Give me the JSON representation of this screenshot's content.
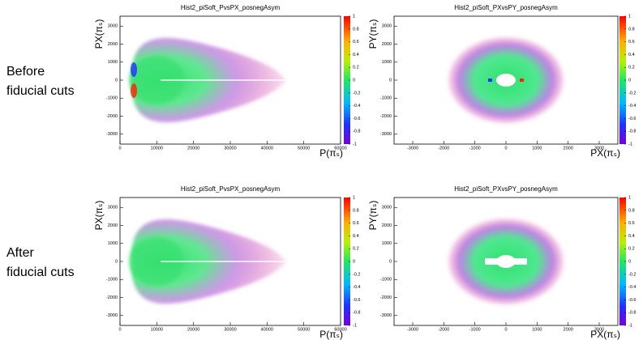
{
  "rows": [
    {
      "label_lines": [
        "Before",
        "fiducial cuts"
      ]
    },
    {
      "label_lines": [
        "After",
        "fiducial cuts"
      ]
    }
  ],
  "chart_data": [
    {
      "type": "heatmap",
      "title": "Hist2_piSoft_PvsPX_posnegAsym",
      "xlabel": "P(πₛ)",
      "ylabel": "PX(πₛ)",
      "xlim": [
        0,
        60000
      ],
      "xticks": [
        0,
        10000,
        20000,
        30000,
        40000,
        50000,
        60000
      ],
      "ylim": [
        -3550,
        3550
      ],
      "yticks": [
        -3000,
        -2000,
        -1000,
        0,
        1000,
        2000,
        3000
      ],
      "zlim": [
        -1,
        1
      ],
      "zticks": [
        -1,
        -0.8,
        -0.6,
        -0.4,
        -0.2,
        0,
        0.2,
        0.4,
        0.6,
        0.8,
        1
      ]
    },
    {
      "type": "heatmap",
      "title": "Hist2_piSoft_PXvsPY_posnegAsym",
      "xlabel": "PX(πₛ)",
      "ylabel": "PY(πₛ)",
      "xlim": [
        -3600,
        3600
      ],
      "xticks": [
        -3000,
        -2000,
        -1000,
        0,
        1000,
        2000,
        3000
      ],
      "ylim": [
        -3550,
        3550
      ],
      "yticks": [
        -3000,
        -2000,
        -1000,
        0,
        1000,
        2000,
        3000
      ],
      "zlim": [
        -1,
        1
      ],
      "zticks": [
        -1,
        -0.8,
        -0.6,
        -0.4,
        -0.2,
        0,
        0.2,
        0.4,
        0.6,
        0.8,
        1
      ]
    },
    {
      "type": "heatmap",
      "title": "Hist2_piSoft_PvsPX_posnegAsym",
      "xlabel": "P(πₛ)",
      "ylabel": "PX(πₛ)",
      "xlim": [
        0,
        60000
      ],
      "xticks": [
        0,
        10000,
        20000,
        30000,
        40000,
        50000,
        60000
      ],
      "ylim": [
        -3550,
        3550
      ],
      "yticks": [
        -3000,
        -2000,
        -1000,
        0,
        1000,
        2000,
        3000
      ],
      "zlim": [
        -1,
        1
      ],
      "zticks": [
        -1,
        -0.8,
        -0.6,
        -0.4,
        -0.2,
        0,
        0.2,
        0.4,
        0.6,
        0.8,
        1
      ]
    },
    {
      "type": "heatmap",
      "title": "Hist2_piSoft_PXvsPY_posnegAsym",
      "xlabel": "PX(πₛ)",
      "ylabel": "PY(πₛ)",
      "xlim": [
        -3600,
        3600
      ],
      "xticks": [
        -3000,
        -2000,
        -1000,
        0,
        1000,
        2000,
        3000
      ],
      "ylim": [
        -3550,
        3550
      ],
      "yticks": [
        -3000,
        -2000,
        -1000,
        0,
        1000,
        2000,
        3000
      ],
      "zlim": [
        -1,
        1
      ],
      "zticks": [
        -1,
        -0.8,
        -0.6,
        -0.4,
        -0.2,
        0,
        0.2,
        0.4,
        0.6,
        0.8,
        1
      ]
    }
  ]
}
